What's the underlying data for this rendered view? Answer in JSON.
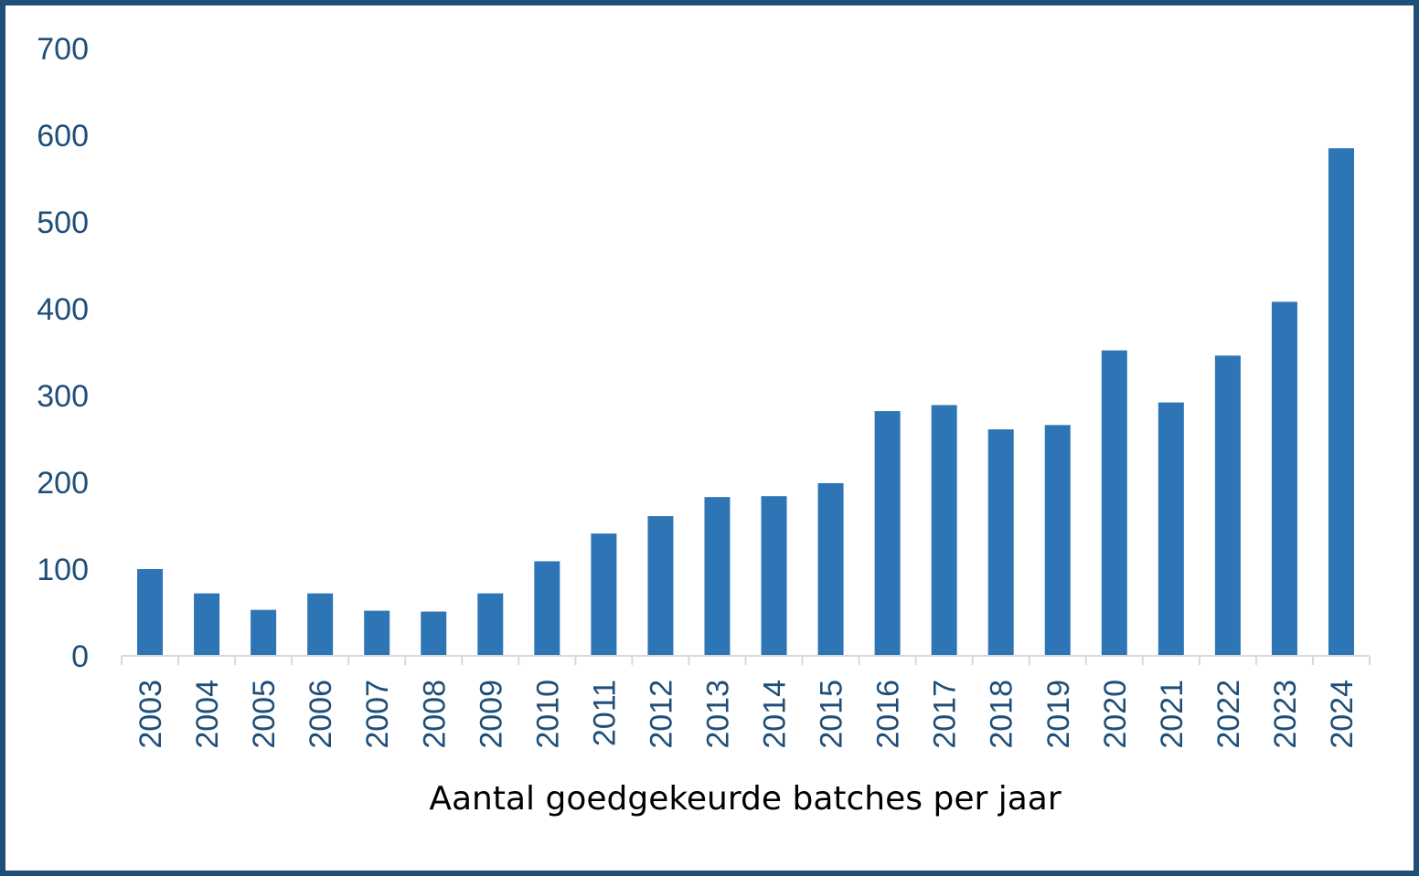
{
  "chart_data": {
    "type": "bar",
    "title": "",
    "xlabel": "Aantal goedgekeurde batches per jaar",
    "ylabel": "",
    "categories": [
      "2003",
      "2004",
      "2005",
      "2006",
      "2007",
      "2008",
      "2009",
      "2010",
      "2011",
      "2012",
      "2013",
      "2014",
      "2015",
      "2016",
      "2017",
      "2018",
      "2019",
      "2020",
      "2021",
      "2022",
      "2023",
      "2024"
    ],
    "values": [
      100,
      72,
      53,
      72,
      52,
      51,
      72,
      109,
      141,
      161,
      183,
      184,
      199,
      282,
      289,
      261,
      266,
      352,
      292,
      346,
      408,
      585
    ],
    "ylim": [
      0,
      700
    ],
    "yticks": [
      0,
      100,
      200,
      300,
      400,
      500,
      600,
      700
    ],
    "grid": false,
    "legend": "none",
    "colors": {
      "bar": "#2e75b6",
      "tick_text": "#1f4e79",
      "axis": "#d9d9d9",
      "frame": "#1f4e79"
    }
  }
}
